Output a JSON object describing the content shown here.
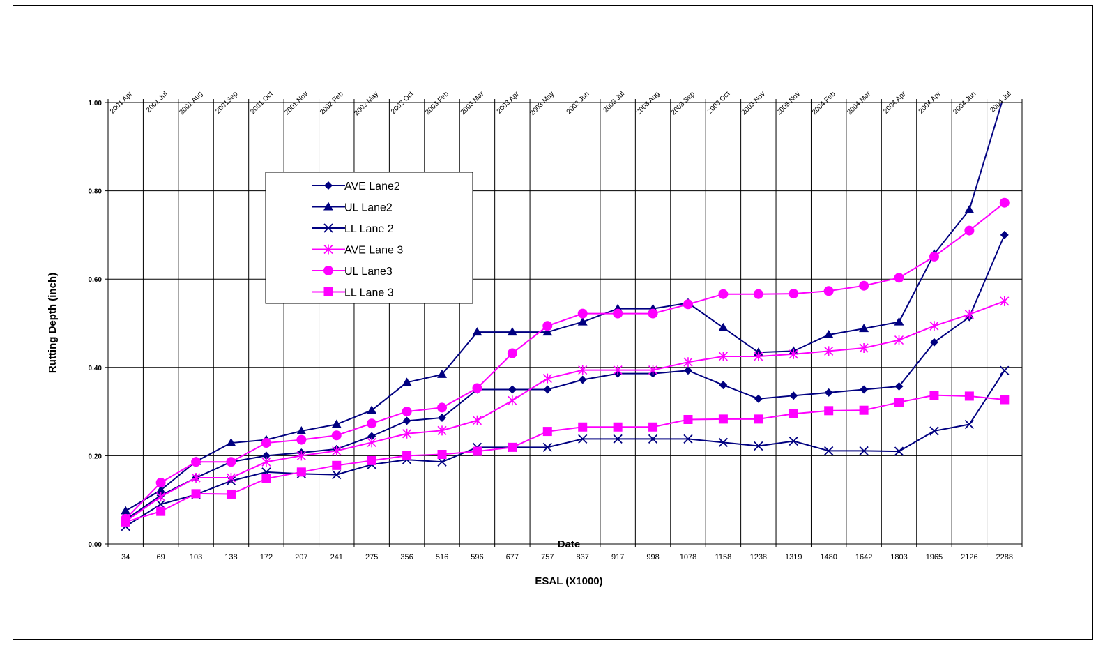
{
  "chart_data": {
    "type": "line",
    "ylabel": "Rutting Depth  (inch)",
    "xlabel": "ESAL (X1000)",
    "x2label": "Date",
    "ylim": [
      0,
      1.0
    ],
    "y_ticks": [
      "0.00",
      "0.20",
      "0.40",
      "0.60",
      "0.80",
      "1.00"
    ],
    "categories": [
      "34",
      "69",
      "103",
      "138",
      "172",
      "207",
      "241",
      "275",
      "356",
      "516",
      "596",
      "677",
      "757",
      "837",
      "917",
      "998",
      "1078",
      "1158",
      "1238",
      "1319",
      "1480",
      "1642",
      "1803",
      "1965",
      "2126",
      "2288"
    ],
    "dates": [
      "2001 Apr",
      "2001 Jul",
      "2001 Aug",
      "2001Sep",
      "2001 Oct",
      "2001 Nov",
      "2002 Feb",
      "2002 May",
      "2002 Oct",
      "2003 Feb",
      "2003 Mar",
      "2003 Apr",
      "2003 May",
      "2003 Jun",
      "2003 Jul",
      "2003 Aug",
      "2003 Sep",
      "2003 Oct",
      "2003 Nov",
      "2003 Nov",
      "2004 Feb",
      "2004 Mar",
      "2004 Apr",
      "2004 Apr",
      "2004 Jun",
      "2004 Jul"
    ],
    "grid": true,
    "legend_position": "upper-left",
    "series": [
      {
        "name": "AVE Lane2",
        "color": "#000080",
        "marker": "diamond",
        "values": [
          0.055,
          0.11,
          0.15,
          0.186,
          0.2,
          0.207,
          0.215,
          0.244,
          0.279,
          0.286,
          0.35,
          0.35,
          0.35,
          0.372,
          0.386,
          0.386,
          0.393,
          0.36,
          0.329,
          0.336,
          0.343,
          0.35,
          0.357,
          0.457,
          0.514,
          0.7
        ]
      },
      {
        "name": "UL  Lane2",
        "color": "#000080",
        "marker": "triangle",
        "values": [
          0.075,
          0.122,
          0.187,
          0.229,
          0.236,
          0.256,
          0.271,
          0.303,
          0.366,
          0.384,
          0.48,
          0.48,
          0.48,
          0.503,
          0.533,
          0.533,
          0.546,
          0.49,
          0.434,
          0.437,
          0.474,
          0.488,
          0.503,
          0.657,
          0.757,
          1.02
        ]
      },
      {
        "name": "LL Lane 2",
        "color": "#000080",
        "marker": "x",
        "values": [
          0.04,
          0.09,
          0.112,
          0.143,
          0.163,
          0.159,
          0.157,
          0.18,
          0.191,
          0.186,
          0.219,
          0.219,
          0.219,
          0.238,
          0.238,
          0.238,
          0.238,
          0.23,
          0.222,
          0.233,
          0.211,
          0.211,
          0.21,
          0.256,
          0.271,
          0.393
        ]
      },
      {
        "name": "AVE Lane 3",
        "color": "#FF00FF",
        "marker": "star",
        "values": [
          0.051,
          0.107,
          0.15,
          0.15,
          0.186,
          0.2,
          0.211,
          0.23,
          0.25,
          0.257,
          0.28,
          0.325,
          0.375,
          0.394,
          0.394,
          0.394,
          0.412,
          0.425,
          0.425,
          0.43,
          0.437,
          0.444,
          0.462,
          0.494,
          0.52,
          0.55
        ]
      },
      {
        "name": "UL  Lane3",
        "color": "#FF00FF",
        "marker": "circle",
        "values": [
          0.057,
          0.139,
          0.186,
          0.186,
          0.229,
          0.236,
          0.246,
          0.273,
          0.3,
          0.309,
          0.353,
          0.432,
          0.494,
          0.522,
          0.522,
          0.522,
          0.543,
          0.566,
          0.566,
          0.567,
          0.573,
          0.585,
          0.603,
          0.651,
          0.71,
          0.773
        ]
      },
      {
        "name": "LL  Lane 3",
        "color": "#FF00FF",
        "marker": "square",
        "values": [
          0.05,
          0.074,
          0.114,
          0.113,
          0.148,
          0.163,
          0.178,
          0.189,
          0.2,
          0.203,
          0.21,
          0.219,
          0.255,
          0.265,
          0.265,
          0.265,
          0.282,
          0.283,
          0.283,
          0.295,
          0.302,
          0.303,
          0.321,
          0.337,
          0.335,
          0.327
        ]
      }
    ]
  }
}
